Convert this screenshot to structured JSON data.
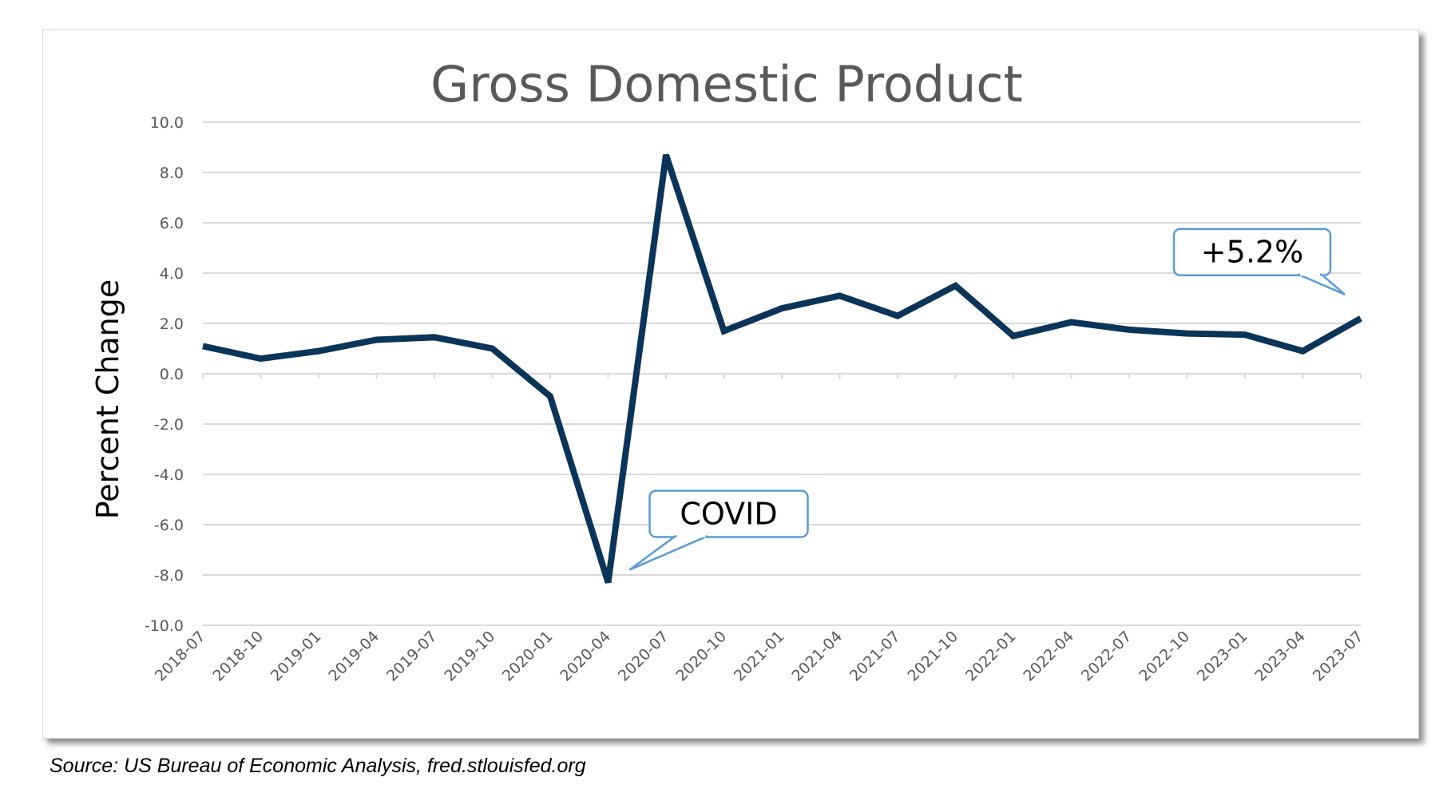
{
  "chart_data": {
    "type": "line",
    "title": "Gross Domestic Product",
    "ylabel": "Percent Change",
    "xlabel": "",
    "ylim": [
      -10,
      10
    ],
    "yticks": [
      "10.0",
      "8.0",
      "6.0",
      "4.0",
      "2.0",
      "0.0",
      "-2.0",
      "-4.0",
      "-6.0",
      "-8.0",
      "-10.0"
    ],
    "grid": true,
    "legend": "none",
    "categories": [
      "2018-07",
      "2018-10",
      "2019-01",
      "2019-04",
      "2019-07",
      "2019-10",
      "2020-01",
      "2020-04",
      "2020-07",
      "2020-10",
      "2021-01",
      "2021-04",
      "2021-07",
      "2021-10",
      "2022-01",
      "2022-04",
      "2022-07",
      "2022-10",
      "2023-01",
      "2023-04",
      "2023-07"
    ],
    "series": [
      {
        "values": [
          1.1,
          0.6,
          0.9,
          1.35,
          1.45,
          1.0,
          -0.9,
          -8.3,
          8.7,
          1.7,
          2.6,
          3.1,
          2.3,
          3.5,
          1.5,
          2.05,
          1.75,
          1.6,
          1.55,
          0.9,
          2.2
        ],
        "color": "#0b3558"
      }
    ],
    "annotations": [
      {
        "text": "COVID",
        "category": "2020-04"
      },
      {
        "text": "+5.2%",
        "category": "2023-07"
      }
    ],
    "colors": {
      "grid": "#d9d9d9",
      "callout_border": "#5b9bd5",
      "tick": "#595959"
    }
  },
  "source_note": "Source: US Bureau of Economic Analysis, fred.stlouisfed.org"
}
